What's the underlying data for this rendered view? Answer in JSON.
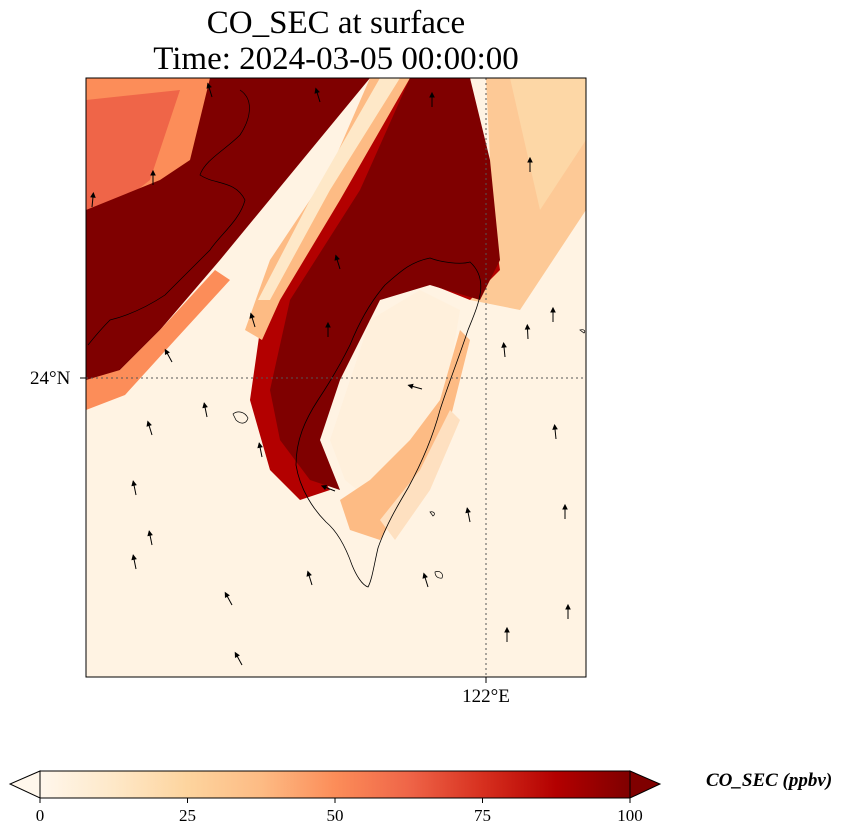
{
  "title": {
    "line1": "CO_SEC at surface",
    "line2": "Time: 2024-03-05 00:00:00"
  },
  "map": {
    "region": "Taiwan",
    "lat_label": "24°N",
    "lon_label": "122°E",
    "gridlines": "dotted",
    "coastline": true,
    "wind_vectors": true
  },
  "colorbar": {
    "label": "CO_SEC (ppbv)",
    "colormap": "OrRd",
    "range": [
      0,
      100
    ],
    "extend": "both",
    "ticks": [
      "0",
      "25",
      "50",
      "75",
      "100"
    ],
    "colors": [
      "#fff7ec",
      "#fee8c8",
      "#fdd49e",
      "#fdbb84",
      "#fc8d59",
      "#ef6548",
      "#d7301f",
      "#b30000",
      "#7f0000"
    ]
  }
}
